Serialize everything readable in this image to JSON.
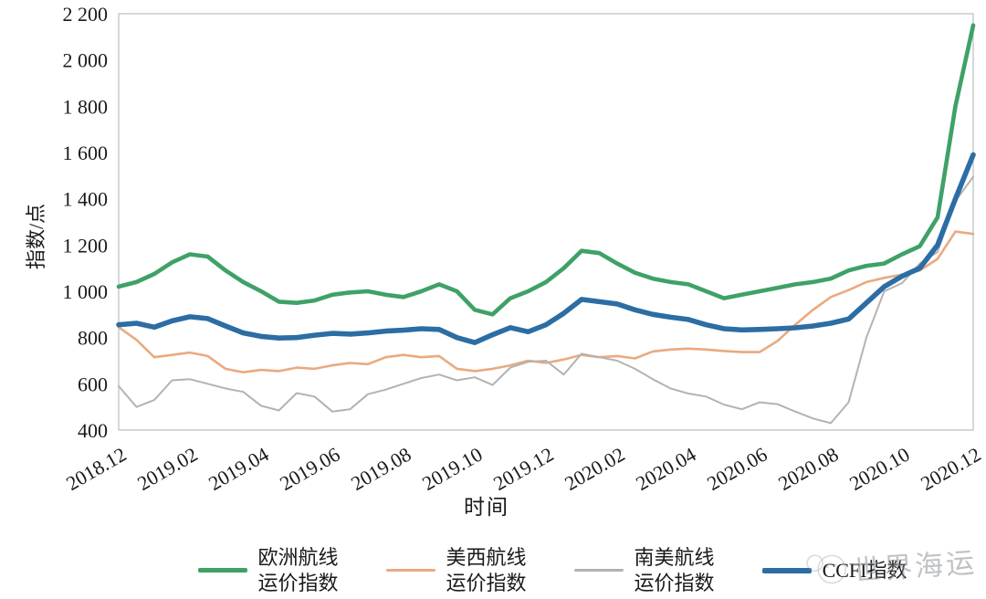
{
  "axis": {
    "y_title": "指数/点",
    "x_title": "时间",
    "y_ticks": [
      "2 200",
      "2 000",
      "1 800",
      "1 600",
      "1 400",
      "1 200",
      "1 000",
      "800",
      "600",
      "400"
    ],
    "y_tick_values": [
      2200,
      2000,
      1800,
      1600,
      1400,
      1200,
      1000,
      800,
      600,
      400
    ],
    "x_ticks": [
      "2018.12",
      "2019.02",
      "2019.04",
      "2019.06",
      "2019.08",
      "2019.10",
      "2019.12",
      "2020.02",
      "2020.04",
      "2020.06",
      "2020.08",
      "2020.10",
      "2020.12"
    ]
  },
  "chart_data": {
    "type": "line",
    "title": "",
    "xlabel": "时间",
    "ylabel": "指数/点",
    "ylim": [
      400,
      2200
    ],
    "grid": false,
    "legend_position": "bottom",
    "x_note": "values sampled at half-month steps from 2018.12 to 2020.12",
    "categories": [
      "2018.12",
      "2019.02",
      "2019.04",
      "2019.06",
      "2019.08",
      "2019.10",
      "2019.12",
      "2020.02",
      "2020.04",
      "2020.06",
      "2020.08",
      "2020.10",
      "2020.12"
    ],
    "series": [
      {
        "name": "美西航线运价指数",
        "color": "#e9aa80",
        "width": 2.6,
        "values": [
          845,
          790,
          715,
          725,
          735,
          720,
          665,
          650,
          660,
          655,
          670,
          665,
          680,
          690,
          685,
          715,
          725,
          715,
          720,
          665,
          655,
          665,
          680,
          700,
          690,
          705,
          725,
          715,
          720,
          710,
          740,
          748,
          752,
          748,
          742,
          737,
          737,
          785,
          855,
          920,
          975,
          1005,
          1040,
          1058,
          1072,
          1090,
          1140,
          1258,
          1248
        ]
      },
      {
        "name": "南美航线运价指数",
        "color": "#b3b3b3",
        "width": 2.0,
        "values": [
          590,
          500,
          530,
          615,
          620,
          600,
          580,
          565,
          505,
          485,
          560,
          545,
          480,
          490,
          555,
          575,
          600,
          625,
          640,
          615,
          628,
          595,
          670,
          695,
          700,
          640,
          730,
          715,
          700,
          665,
          620,
          580,
          558,
          545,
          510,
          490,
          520,
          512,
          480,
          450,
          430,
          520,
          800,
          1000,
          1035,
          1120,
          1170,
          1390,
          1495
        ]
      },
      {
        "name": "欧洲航线运价指数",
        "color": "#3fa167",
        "width": 4.6,
        "values": [
          1020,
          1040,
          1075,
          1125,
          1160,
          1150,
          1090,
          1040,
          1000,
          955,
          950,
          960,
          985,
          995,
          1000,
          985,
          975,
          1000,
          1030,
          1000,
          920,
          900,
          970,
          1000,
          1040,
          1100,
          1175,
          1165,
          1120,
          1080,
          1055,
          1040,
          1030,
          1000,
          970,
          985,
          1000,
          1015,
          1030,
          1040,
          1055,
          1090,
          1110,
          1120,
          1160,
          1195,
          1320,
          1800,
          2150
        ]
      },
      {
        "name": "CCFI指数",
        "color": "#2c6da4",
        "width": 5.6,
        "values": [
          855,
          862,
          845,
          872,
          890,
          882,
          850,
          820,
          805,
          798,
          800,
          810,
          818,
          815,
          820,
          828,
          832,
          838,
          835,
          800,
          778,
          812,
          843,
          825,
          855,
          905,
          965,
          955,
          945,
          920,
          900,
          888,
          878,
          855,
          838,
          833,
          835,
          838,
          842,
          850,
          862,
          880,
          950,
          1020,
          1065,
          1100,
          1200,
          1400,
          1590
        ]
      }
    ]
  },
  "legend": {
    "items": [
      {
        "line1": "欧洲航线",
        "line2": "运价指数",
        "color": "#3fa167",
        "thickness": 5
      },
      {
        "line1": "美西航线",
        "line2": "运价指数",
        "color": "#e9aa80",
        "thickness": 3
      },
      {
        "line1": "南美航线",
        "line2": "运价指数",
        "color": "#b3b3b3",
        "thickness": 3
      },
      {
        "line1": "CCFI指数",
        "line2": "",
        "color": "#2c6da4",
        "thickness": 6
      }
    ]
  },
  "watermark": {
    "text": "世界海运"
  }
}
